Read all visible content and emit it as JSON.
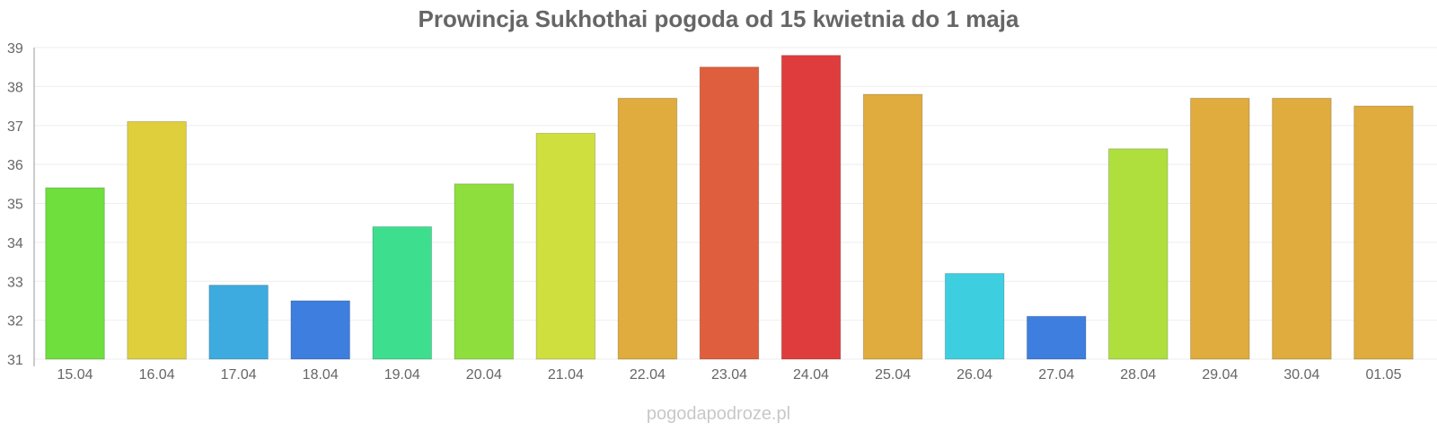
{
  "chart_data": {
    "type": "bar",
    "title": "Prowincja Sukhothai pogoda od 15 kwietnia do 1 maja",
    "xlabel": "",
    "ylabel": "",
    "ylim": [
      31,
      39
    ],
    "yticks": [
      31,
      32,
      33,
      34,
      35,
      36,
      37,
      38,
      39
    ],
    "grid": true,
    "categories": [
      "15.04",
      "16.04",
      "17.04",
      "18.04",
      "19.04",
      "20.04",
      "21.04",
      "22.04",
      "23.04",
      "24.04",
      "25.04",
      "26.04",
      "27.04",
      "28.04",
      "29.04",
      "30.04",
      "01.05"
    ],
    "values": [
      35.4,
      37.1,
      32.9,
      32.5,
      34.4,
      35.5,
      36.8,
      37.7,
      38.5,
      38.8,
      37.8,
      33.2,
      32.1,
      36.4,
      37.7,
      37.7,
      37.5
    ],
    "colors": [
      "#66dd33",
      "#ddcc33",
      "#33a6dd",
      "#3377dd",
      "#33dd88",
      "#88dd33",
      "#ccdd33",
      "#dda833",
      "#dd5533",
      "#dd3333",
      "#dda833",
      "#33ccdd",
      "#3377dd",
      "#aadd33",
      "#dda833",
      "#dda833",
      "#dda833"
    ]
  },
  "watermark": "pogodapodroze.pl"
}
